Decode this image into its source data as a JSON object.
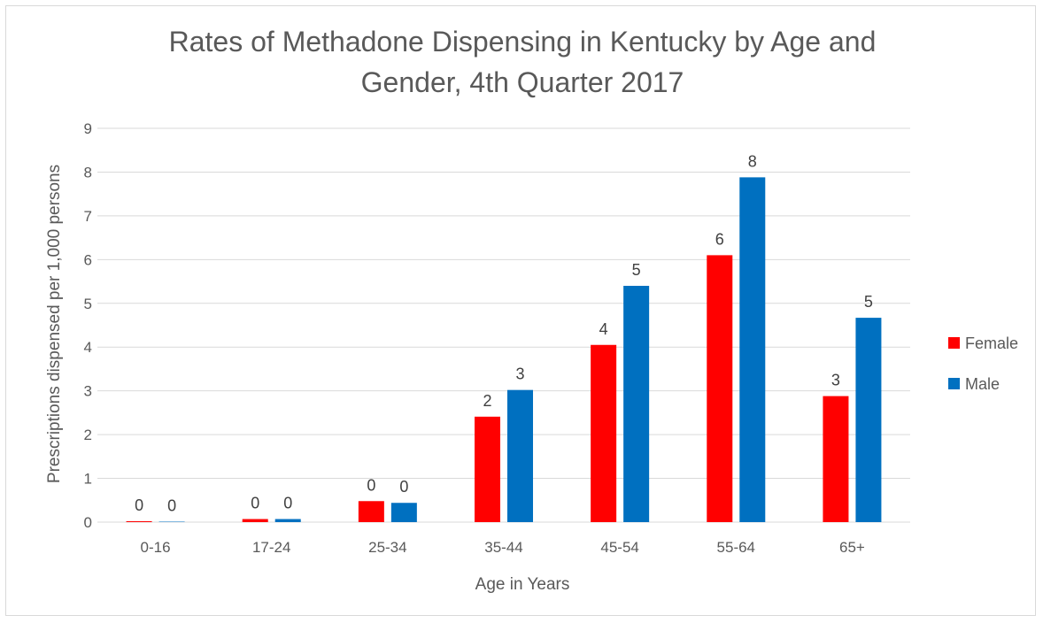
{
  "chart_data": {
    "type": "bar",
    "title_line1": "Rates of Methadone Dispensing in Kentucky by Age and",
    "title_line2": "Gender, 4th Quarter 2017",
    "xlabel": "Age in Years",
    "ylabel": "Prescriptions dispensed per 1,000 persons",
    "ylim": [
      0,
      9
    ],
    "yticks": [
      0,
      1,
      2,
      3,
      4,
      5,
      6,
      7,
      8,
      9
    ],
    "grid": true,
    "legend_position": "right",
    "categories": [
      "0-16",
      "17-24",
      "25-34",
      "35-44",
      "45-54",
      "55-64",
      "65+"
    ],
    "series": [
      {
        "name": "Female",
        "color": "#ff0000",
        "values": [
          0.02,
          0.07,
          0.48,
          2.41,
          4.05,
          6.1,
          2.88
        ],
        "labels": [
          "0",
          "0",
          "0",
          "2",
          "4",
          "6",
          "3"
        ]
      },
      {
        "name": "Male",
        "color": "#0070c0",
        "values": [
          0.01,
          0.07,
          0.44,
          3.02,
          5.4,
          7.88,
          4.67
        ],
        "labels": [
          "0",
          "0",
          "0",
          "3",
          "5",
          "8",
          "5"
        ]
      }
    ]
  }
}
